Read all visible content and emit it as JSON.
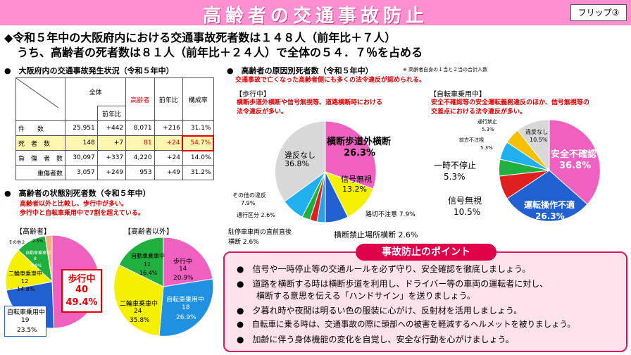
{
  "title": "高齢者の交通事故防止",
  "flip": "フリップ③",
  "headline": {
    "line1": "◆令和５年中の大阪府内における交通事故死者数は１４８人（前年比＋７人）",
    "line2": "うち、高齢者の死者数は８１人（前年比＋２４人）で全体の５４．７％を占める"
  },
  "table": {
    "title": "●　大阪府内の交通事故発生状況（令和５年中）",
    "h_all": "全体",
    "h_elder": "高齢者",
    "h_prev": "前年比",
    "h_ratio": "構成率",
    "rows": [
      {
        "label": "件　　数",
        "total": "25,951",
        "tprev": "+442",
        "elder": "8,071",
        "eprev": "+216",
        "ratio": "31.1%"
      },
      {
        "label": "死　者　数",
        "total": "148",
        "tprev": "+7",
        "elder": "81",
        "eprev": "+24",
        "ratio": "54.7%"
      },
      {
        "label": "負　傷　者　数",
        "total": "30,097",
        "tprev": "+337",
        "elder": "4,220",
        "eprev": "+24",
        "ratio": "14.0%"
      },
      {
        "label": "重傷者数",
        "total": "3,057",
        "tprev": "+249",
        "elder": "953",
        "eprev": "+49",
        "ratio": "31.2%"
      }
    ]
  },
  "state": {
    "title": "●　高齢者の状態別死者数（令和５年中）",
    "note1": "高齢者以外と比較し、歩行中が多い。",
    "note2": "歩行中と自転車乗用中で7割を超えている。"
  },
  "pie_elder": {
    "label": "【高齢者】",
    "walk": "歩行中",
    "walk_n": "40",
    "walk_p": "49.4%",
    "bike": "自転車乗用中",
    "bike_n": "19",
    "bike_p": "23.5%",
    "moto": "二輪車乗車中",
    "moto_n": "12",
    "moto_p": "14.8%",
    "car": "自動車乗車中",
    "car_n": "8",
    "car_p": "9.9%",
    "other": "その他２",
    "other_p": "2.5%"
  },
  "pie_non": {
    "label": "【高齢者以外】",
    "walk": "歩行中",
    "walk_n": "14",
    "walk_p": "20.9%",
    "bike": "自転車乗用中",
    "bike_n": "18",
    "bike_p": "26.9%",
    "moto": "二輪車乗車中",
    "moto_n": "24",
    "moto_p": "35.8%",
    "car": "自動車乗車中",
    "car_n": "11",
    "car_p": "16.4%"
  },
  "cause": {
    "title": "●　高齢者の原因別死者数（令和５年中）",
    "note": "※ 高齢者自身の１当と２当の合計人数",
    "sub": "交通事故で亡くなった高齢者側にも多くの法令違反が認められる。"
  },
  "walk_pie": {
    "label": "【歩行中】",
    "n1": "横断歩道外横断や信号無視等、道路横断時における",
    "n2": "法令違反が多い。",
    "a": "横断歩道外横断",
    "a_p": "26.3%",
    "b": "信号無視",
    "b_p": "13.2%",
    "c": "路切不注意 7.9%",
    "d": "横断禁止場所横断 2.6%",
    "e1": "駐停車車両の直前直後",
    "e2": "横断 2.6%",
    "f": "通行区分 2.6%",
    "g1": "その他の違反",
    "g2": "7.9%",
    "h": "違反なし",
    "h_p": "36.8%"
  },
  "bike_pie": {
    "label": "【自転車乗用中】",
    "n1": "安全不確認等の安全運転義務違反のほか、信号無視等の",
    "n2": "交差点における法令違反が多い。",
    "a": "安全不確認",
    "a_p": "36.8%",
    "b": "運転操作不適",
    "b_p": "26.3%",
    "c": "信号無視",
    "c_p": "10.5%",
    "d": "一時不停止",
    "d_p": "5.3%",
    "e1": "前方不注視",
    "e2": "5.3%",
    "f1": "通行禁止",
    "f2": "5.3%",
    "g1": "違反なし",
    "g2": "10.5%"
  },
  "points": {
    "title": "事故防止のポイント",
    "items": [
      "●　信号や一時停止等の交通ルールを必ず守り、安全確認を徹底しましょう。",
      "●　道路を横断する時は横断歩道を利用し、ドライバー等の車両の運転者に対し、",
      "横断する意思を伝える「ハンドサイン」を送りましょう。",
      "●　夕暮れ時や夜間は明るい色の服装に心がけ、反射材を活用しましょう。",
      "●　自転車に乗る時は、交通事故の際に頭部への被害を軽減するヘルメットを被りましょう。",
      "●　加齢に伴う身体機能の変化を自覚し、安全な行動を心がけましょう。"
    ]
  }
}
